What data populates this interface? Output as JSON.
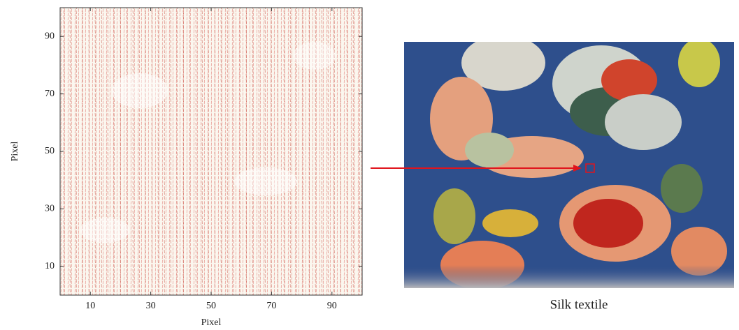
{
  "chart_data": {
    "type": "quiver",
    "xlabel": "Pixel",
    "ylabel": "Pixel",
    "xlim": [
      0,
      100
    ],
    "ylim": [
      0,
      100
    ],
    "xticks": [
      10,
      30,
      50,
      70,
      90
    ],
    "yticks": [
      10,
      30,
      50,
      70,
      90
    ],
    "color": "#d9534f",
    "image_caption": "Silk textile"
  }
}
